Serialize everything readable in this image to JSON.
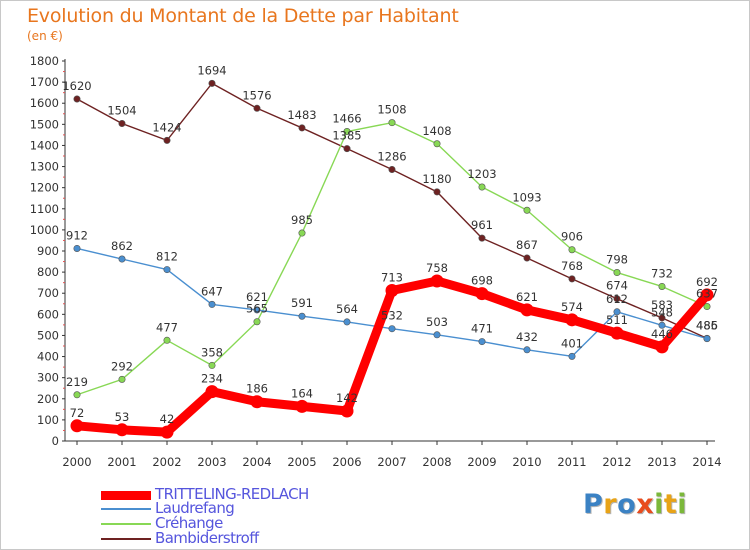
{
  "title": "Evolution du Montant de la Dette par Habitant",
  "subtitle": "(en €)",
  "logo": {
    "text": "Proxiti",
    "letters": [
      "P",
      "r",
      "o",
      "x",
      "i",
      "t",
      "i"
    ],
    "colors": [
      "#3b82c4",
      "#e8a317",
      "#3b82c4",
      "#e84c1e",
      "#7bb83a",
      "#e8a317",
      "#7bb83a"
    ]
  },
  "chart_data": {
    "type": "line",
    "title": "Evolution du Montant de la Dette par Habitant",
    "subtitle": "(en €)",
    "x": [
      "2000",
      "2001",
      "2002",
      "2003",
      "2004",
      "2005",
      "2006",
      "2007",
      "2008",
      "2009",
      "2010",
      "2011",
      "2012",
      "2013",
      "2014"
    ],
    "ylim": [
      0,
      1800
    ],
    "yticks": [
      0,
      100,
      200,
      300,
      400,
      500,
      600,
      700,
      800,
      900,
      1000,
      1100,
      1200,
      1300,
      1400,
      1500,
      1600,
      1700,
      1800
    ],
    "grid": false,
    "legend_position": "bottom-left",
    "series": [
      {
        "name": "TRITTELING-REDLACH",
        "color": "#ff0000",
        "values": [
          72,
          53,
          42,
          234,
          186,
          164,
          142,
          713,
          758,
          698,
          621,
          574,
          511,
          446,
          692
        ]
      },
      {
        "name": "Laudrefang",
        "color": "#4a8fd0",
        "values": [
          912,
          862,
          812,
          647,
          621,
          591,
          564,
          532,
          503,
          471,
          432,
          401,
          612,
          548,
          485
        ]
      },
      {
        "name": "Créhange",
        "color": "#88d855",
        "values": [
          219,
          292,
          477,
          358,
          565,
          985,
          1466,
          1508,
          1408,
          1203,
          1093,
          906,
          798,
          732,
          637
        ]
      },
      {
        "name": "Bambiderstroff",
        "color": "#6e2222",
        "values": [
          1620,
          1504,
          1424,
          1694,
          1576,
          1483,
          1385,
          1286,
          1180,
          961,
          867,
          768,
          674,
          583,
          486
        ]
      }
    ]
  }
}
